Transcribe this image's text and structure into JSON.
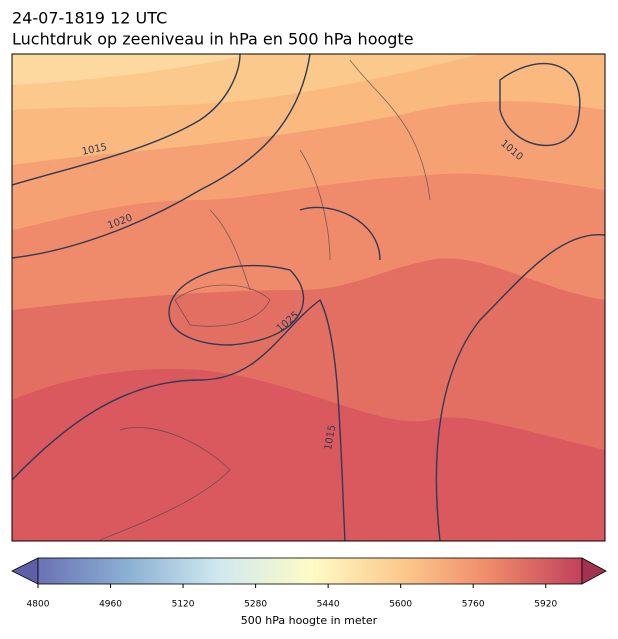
{
  "title": "24-07-1819 12 UTC",
  "subtitle": "Luchtdruk op zeeniveau in hPa en 500 hPa hoogte",
  "contour_labels": [
    "1015",
    "1020",
    "1025",
    "1010",
    "1015"
  ],
  "colorbar": {
    "label": "500 hPa hoogte in meter",
    "lim": [
      4800,
      6000
    ],
    "ticks": [
      4800,
      4960,
      5120,
      5280,
      5440,
      5600,
      5760,
      5920
    ]
  }
}
